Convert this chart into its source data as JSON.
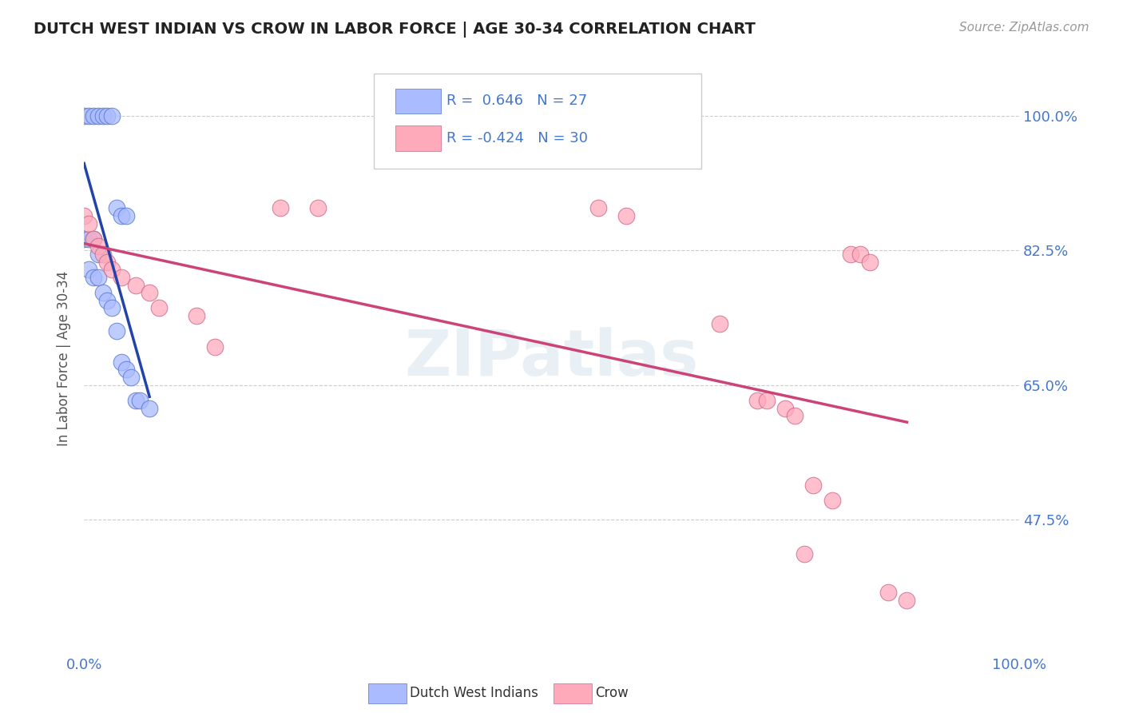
{
  "title": "DUTCH WEST INDIAN VS CROW IN LABOR FORCE | AGE 30-34 CORRELATION CHART",
  "source_text": "Source: ZipAtlas.com",
  "ylabel": "In Labor Force | Age 30-34",
  "xlim": [
    0.0,
    1.0
  ],
  "ylim": [
    0.3,
    1.07
  ],
  "x_tick_labels": [
    "0.0%",
    "100.0%"
  ],
  "y_tick_labels": [
    "47.5%",
    "65.0%",
    "82.5%",
    "100.0%"
  ],
  "y_tick_values": [
    0.475,
    0.65,
    0.825,
    1.0
  ],
  "x_tick_values": [
    0.0,
    1.0
  ],
  "grid_color": "#cccccc",
  "background_color": "#ffffff",
  "blue_color": "#aabbff",
  "blue_edge_color": "#5577cc",
  "blue_line_color": "#2244aa",
  "pink_color": "#ffaabb",
  "pink_edge_color": "#cc6688",
  "pink_line_color": "#cc4477",
  "R_blue": 0.646,
  "N_blue": 27,
  "R_pink": -0.424,
  "N_pink": 30,
  "watermark": "ZIPatlas",
  "blue_x": [
    0.0,
    0.005,
    0.01,
    0.015,
    0.02,
    0.025,
    0.03,
    0.035,
    0.04,
    0.045,
    0.0,
    0.005,
    0.01,
    0.015,
    0.005,
    0.01,
    0.015,
    0.02,
    0.025,
    0.03,
    0.035,
    0.04,
    0.045,
    0.05,
    0.055,
    0.06,
    0.07
  ],
  "blue_y": [
    1.0,
    1.0,
    1.0,
    1.0,
    1.0,
    1.0,
    1.0,
    0.88,
    0.87,
    0.87,
    0.84,
    0.84,
    0.84,
    0.82,
    0.8,
    0.79,
    0.79,
    0.77,
    0.76,
    0.75,
    0.72,
    0.68,
    0.67,
    0.66,
    0.63,
    0.63,
    0.62
  ],
  "pink_x": [
    0.0,
    0.005,
    0.01,
    0.015,
    0.02,
    0.025,
    0.03,
    0.04,
    0.055,
    0.07,
    0.08,
    0.12,
    0.14,
    0.21,
    0.25,
    0.55,
    0.58,
    0.68,
    0.72,
    0.73,
    0.75,
    0.76,
    0.77,
    0.78,
    0.8,
    0.82,
    0.83,
    0.84,
    0.86,
    0.88
  ],
  "pink_y": [
    0.87,
    0.86,
    0.84,
    0.83,
    0.82,
    0.81,
    0.8,
    0.79,
    0.78,
    0.77,
    0.75,
    0.74,
    0.7,
    0.88,
    0.88,
    0.88,
    0.87,
    0.73,
    0.63,
    0.63,
    0.62,
    0.61,
    0.43,
    0.52,
    0.5,
    0.82,
    0.82,
    0.81,
    0.38,
    0.37
  ]
}
